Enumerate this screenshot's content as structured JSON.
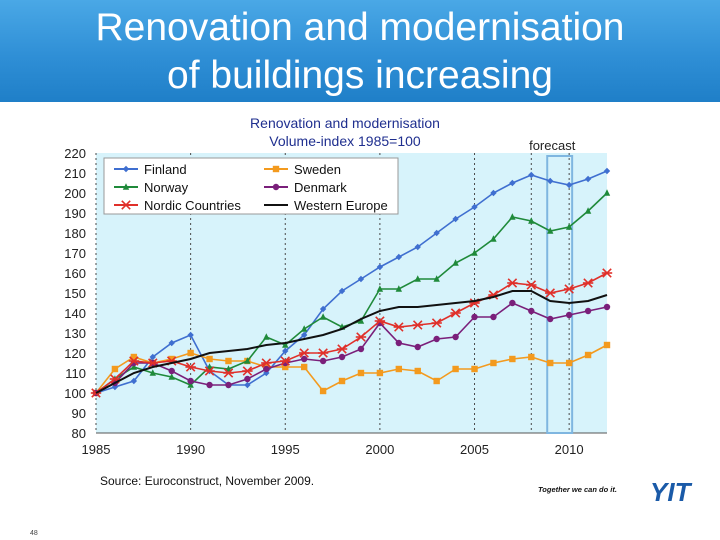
{
  "slide": {
    "title_line1": "Renovation and modernisation",
    "title_line2": "of buildings increasing",
    "source": "Source: Euroconstruct, November 2009.",
    "slogan": "Together we can do it.",
    "logo": "YIT",
    "page_number": "48"
  },
  "chart_data": {
    "type": "line",
    "title": "Renovation and modernisation",
    "subtitle": "Volume-index 1985=100",
    "annotation": "forecast",
    "forecast_range": [
      2009,
      2010
    ],
    "x": [
      1985,
      1986,
      1987,
      1988,
      1989,
      1990,
      1991,
      1992,
      1993,
      1994,
      1995,
      1996,
      1997,
      1998,
      1999,
      2000,
      2001,
      2002,
      2003,
      2004,
      2005,
      2006,
      2007,
      2008,
      2009,
      2010,
      2011,
      2012
    ],
    "xlim": [
      1985,
      2012
    ],
    "ylim": [
      80,
      220
    ],
    "x_ticks": [
      1985,
      1990,
      1995,
      2000,
      2005,
      2010
    ],
    "y_ticks": [
      80,
      90,
      100,
      110,
      120,
      130,
      140,
      150,
      160,
      170,
      180,
      190,
      200,
      210,
      220
    ],
    "grid": "vertical",
    "legend_position": "top-left",
    "series": [
      {
        "name": "Finland",
        "color": "#3f6fd0",
        "marker": "diamond",
        "values": [
          100,
          103,
          106,
          118,
          125,
          129,
          111,
          104,
          104,
          110,
          121,
          129,
          142,
          151,
          157,
          163,
          168,
          173,
          180,
          187,
          193,
          200,
          205,
          209,
          206,
          204,
          207,
          211
        ]
      },
      {
        "name": "Sweden",
        "color": "#f39a1e",
        "marker": "square",
        "values": [
          100,
          112,
          118,
          115,
          117,
          120,
          117,
          116,
          116,
          113,
          113,
          113,
          101,
          106,
          110,
          110,
          112,
          111,
          106,
          112,
          112,
          115,
          117,
          118,
          115,
          115,
          119,
          124
        ]
      },
      {
        "name": "Norway",
        "color": "#1f8a3a",
        "marker": "triangle",
        "values": [
          100,
          107,
          113,
          110,
          108,
          104,
          113,
          112,
          116,
          128,
          124,
          132,
          138,
          133,
          136,
          152,
          152,
          157,
          157,
          165,
          170,
          177,
          188,
          186,
          181,
          183,
          191,
          200
        ]
      },
      {
        "name": "Denmark",
        "color": "#7a1f7a",
        "marker": "circle",
        "values": [
          100,
          105,
          115,
          115,
          111,
          106,
          104,
          104,
          107,
          112,
          115,
          117,
          116,
          118,
          122,
          135,
          125,
          123,
          127,
          128,
          138,
          138,
          145,
          141,
          137,
          139,
          141,
          143
        ]
      },
      {
        "name": "Nordic Countries",
        "color": "#e0302a",
        "marker": "x",
        "values": [
          100,
          107,
          116,
          115,
          116,
          113,
          111,
          110,
          111,
          115,
          116,
          120,
          120,
          122,
          128,
          136,
          133,
          134,
          135,
          140,
          145,
          149,
          155,
          154,
          150,
          152,
          155,
          160
        ]
      },
      {
        "name": "Western Europe",
        "color": "#111111",
        "marker": "none",
        "values": [
          100,
          105,
          110,
          113,
          115,
          117,
          120,
          121,
          122,
          124,
          125,
          127,
          129,
          132,
          137,
          141,
          143,
          143,
          144,
          145,
          146,
          148,
          151,
          151,
          146,
          145,
          146,
          149
        ]
      }
    ]
  }
}
